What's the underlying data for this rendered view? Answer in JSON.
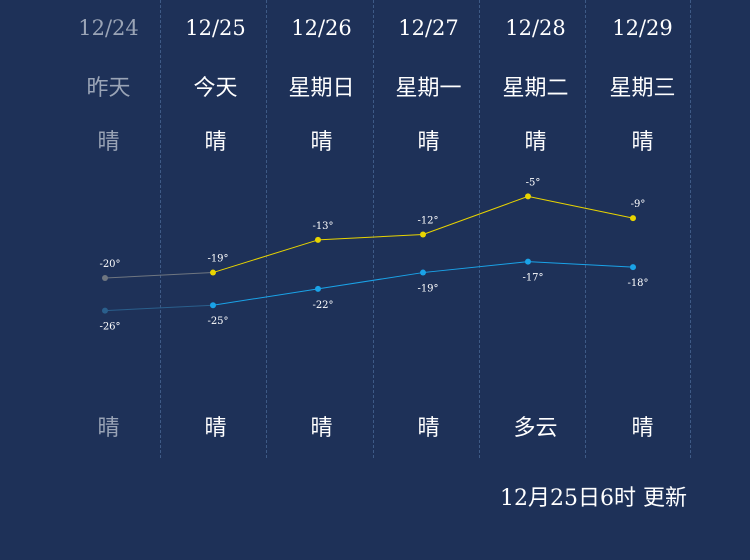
{
  "forecast": {
    "days": [
      {
        "date": "12/24",
        "day": "昨天",
        "weather_day": "晴",
        "weather_night": "晴",
        "high": -20,
        "low": -26,
        "high_label": "-20°",
        "low_label": "-26°",
        "past": true
      },
      {
        "date": "12/25",
        "day": "今天",
        "weather_day": "晴",
        "weather_night": "晴",
        "high": -19,
        "low": -25,
        "high_label": "-19°",
        "low_label": "-25°",
        "past": false
      },
      {
        "date": "12/26",
        "day": "星期日",
        "weather_day": "晴",
        "weather_night": "晴",
        "high": -13,
        "low": -22,
        "high_label": "-13°",
        "low_label": "-22°",
        "past": false
      },
      {
        "date": "12/27",
        "day": "星期一",
        "weather_day": "晴",
        "weather_night": "晴",
        "high": -12,
        "low": -19,
        "high_label": "-12°",
        "low_label": "-19°",
        "past": false
      },
      {
        "date": "12/28",
        "day": "星期二",
        "weather_day": "晴",
        "weather_night": "多云",
        "high": -5,
        "low": -17,
        "high_label": "-5°",
        "low_label": "-17°",
        "past": false
      },
      {
        "date": "12/29",
        "day": "星期三",
        "weather_day": "晴",
        "weather_night": "晴",
        "high": -9,
        "low": -18,
        "high_label": "-9°",
        "low_label": "-18°",
        "past": false
      }
    ]
  },
  "update_text": "12月25日6时 更新",
  "colors": {
    "background": "#1e3158",
    "high_line": "#e8d400",
    "low_line": "#1aa3e8",
    "past": "#6f7680",
    "text": "#ffffff"
  },
  "chart_data": {
    "type": "line",
    "categories": [
      "12/24",
      "12/25",
      "12/26",
      "12/27",
      "12/28",
      "12/29"
    ],
    "series": [
      {
        "values": [
          -20,
          -19,
          -13,
          -12,
          -5,
          -9
        ]
      },
      {
        "values": [
          -26,
          -25,
          -22,
          -19,
          -17,
          -18
        ]
      }
    ]
  }
}
